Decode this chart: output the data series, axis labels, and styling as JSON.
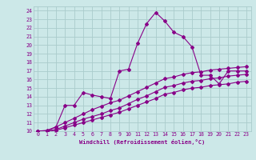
{
  "xlabel": "Windchill (Refroidissement éolien,°C)",
  "bg_color": "#cce8e8",
  "line_color": "#880088",
  "grid_color": "#aacccc",
  "xlim": [
    -0.5,
    23.5
  ],
  "ylim": [
    10,
    24.5
  ],
  "xticks": [
    0,
    1,
    2,
    3,
    4,
    5,
    6,
    7,
    8,
    9,
    10,
    11,
    12,
    13,
    14,
    15,
    16,
    17,
    18,
    19,
    20,
    21,
    22,
    23
  ],
  "yticks": [
    10,
    11,
    12,
    13,
    14,
    15,
    16,
    17,
    18,
    19,
    20,
    21,
    22,
    23,
    24
  ],
  "line1_x": [
    0,
    1,
    2,
    3,
    4,
    5,
    6,
    7,
    8,
    9,
    10,
    11,
    12,
    13,
    14,
    15,
    16,
    17,
    18,
    19,
    20,
    21,
    22,
    23
  ],
  "line1_y": [
    10,
    10,
    10.5,
    13,
    13,
    14.5,
    14.2,
    14.0,
    13.8,
    17.0,
    17.2,
    20.2,
    22.5,
    23.8,
    22.8,
    21.5,
    21.0,
    19.8,
    16.5,
    16.5,
    15.5,
    17.0,
    17.0,
    17.0
  ],
  "line2_x": [
    0,
    1,
    2,
    3,
    4,
    5,
    6,
    7,
    8,
    9,
    10,
    11,
    12,
    13,
    14,
    15,
    16,
    17,
    18,
    19,
    20,
    21,
    22,
    23
  ],
  "line2_y": [
    10,
    10.1,
    10.5,
    11.0,
    11.5,
    12.0,
    12.5,
    12.9,
    13.3,
    13.6,
    14.1,
    14.6,
    15.1,
    15.6,
    16.1,
    16.3,
    16.6,
    16.8,
    16.9,
    17.1,
    17.2,
    17.3,
    17.4,
    17.5
  ],
  "line3_x": [
    0,
    1,
    2,
    3,
    4,
    5,
    6,
    7,
    8,
    9,
    10,
    11,
    12,
    13,
    14,
    15,
    16,
    17,
    18,
    19,
    20,
    21,
    22,
    23
  ],
  "line3_y": [
    10,
    10.0,
    10.2,
    10.6,
    11.0,
    11.4,
    11.7,
    12.0,
    12.4,
    12.7,
    13.2,
    13.7,
    14.1,
    14.6,
    15.1,
    15.3,
    15.6,
    15.8,
    15.9,
    16.1,
    16.2,
    16.4,
    16.5,
    16.6
  ],
  "line4_x": [
    0,
    1,
    2,
    3,
    4,
    5,
    6,
    7,
    8,
    9,
    10,
    11,
    12,
    13,
    14,
    15,
    16,
    17,
    18,
    19,
    20,
    21,
    22,
    23
  ],
  "line4_y": [
    10,
    10.0,
    10.1,
    10.4,
    10.7,
    11.0,
    11.3,
    11.6,
    11.9,
    12.2,
    12.6,
    13.0,
    13.4,
    13.8,
    14.3,
    14.5,
    14.8,
    15.0,
    15.1,
    15.3,
    15.4,
    15.5,
    15.7,
    15.8
  ]
}
